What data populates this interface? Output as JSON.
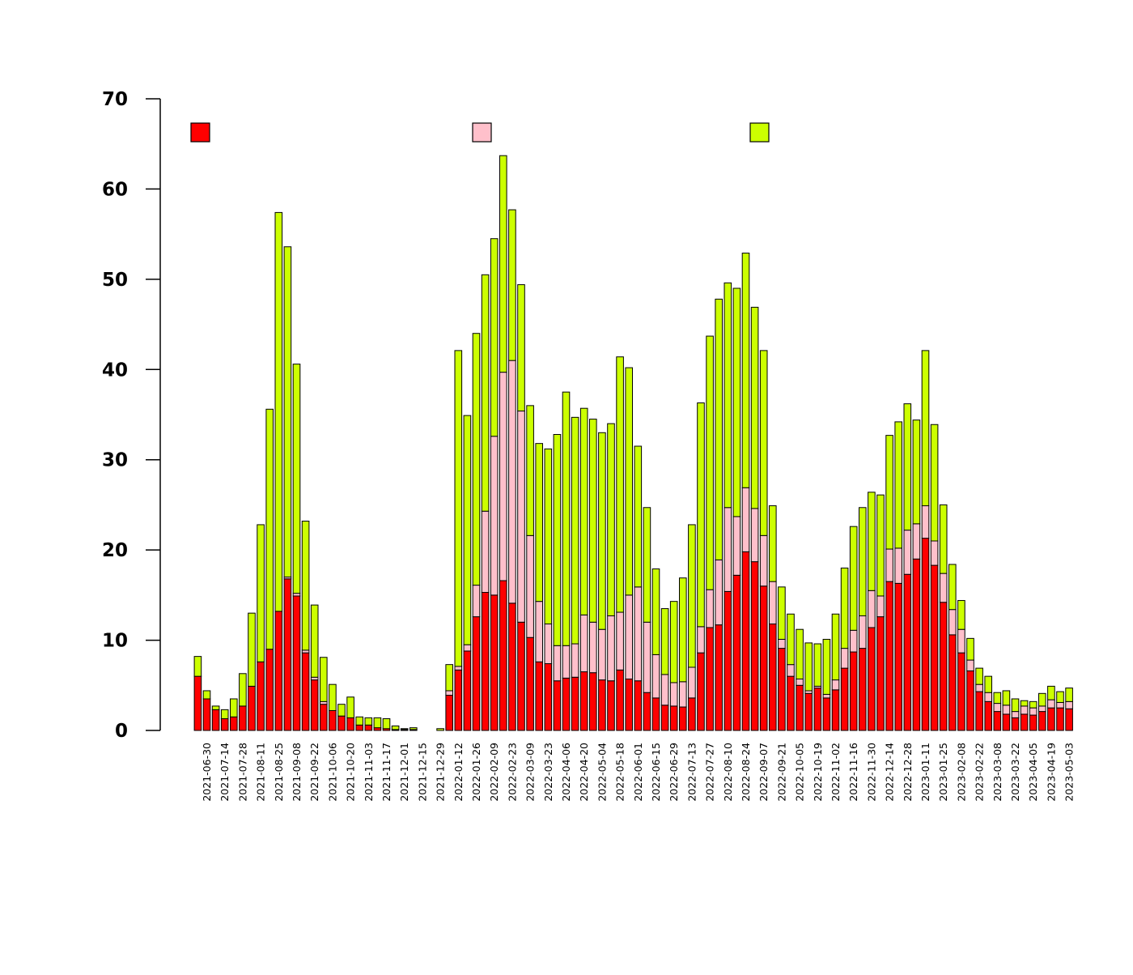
{
  "title": {
    "line1": "",
    "line2": ""
  },
  "ylabel": "",
  "caption": {
    "line1": "",
    "line2": ""
  },
  "colors": {
    "secured_beds": "#ff0000",
    "other_hospital": "#ffc0cb",
    "accommodation": "#ccff00",
    "stroke": "#000000"
  },
  "chart_data": {
    "type": "bar",
    "stacked": true,
    "title": "",
    "xlabel": "",
    "ylabel": "",
    "ylim": [
      0,
      70
    ],
    "yticks": [
      0,
      10,
      20,
      30,
      40,
      50,
      60,
      70
    ],
    "legend_position": "top",
    "grid": false,
    "x": [
      "2021-06-23",
      "2021-06-30",
      "2021-07-07",
      "2021-07-14",
      "2021-07-21",
      "2021-07-28",
      "2021-08-04",
      "2021-08-11",
      "2021-08-18",
      "2021-08-25",
      "2021-09-01",
      "2021-09-08",
      "2021-09-15",
      "2021-09-22",
      "2021-09-29",
      "2021-10-06",
      "2021-10-13",
      "2021-10-20",
      "2021-10-27",
      "2021-11-03",
      "2021-11-10",
      "2021-11-17",
      "2021-11-24",
      "2021-12-01",
      "2021-12-08",
      "2021-12-15",
      "2021-12-22",
      "2021-12-29",
      "2022-01-05",
      "2022-01-12",
      "2022-01-19",
      "2022-01-26",
      "2022-02-02",
      "2022-02-09",
      "2022-02-16",
      "2022-02-23",
      "2022-03-02",
      "2022-03-09",
      "2022-03-16",
      "2022-03-23",
      "2022-03-30",
      "2022-04-06",
      "2022-04-13",
      "2022-04-20",
      "2022-04-27",
      "2022-05-04",
      "2022-05-11",
      "2022-05-18",
      "2022-05-25",
      "2022-06-01",
      "2022-06-08",
      "2022-06-15",
      "2022-06-22",
      "2022-06-29",
      "2022-07-06",
      "2022-07-13",
      "2022-07-20",
      "2022-07-27",
      "2022-08-03",
      "2022-08-10",
      "2022-08-17",
      "2022-08-24",
      "2022-08-31",
      "2022-09-07",
      "2022-09-14",
      "2022-09-21",
      "2022-09-28",
      "2022-10-05",
      "2022-10-12",
      "2022-10-19",
      "2022-10-26",
      "2022-11-02",
      "2022-11-09",
      "2022-11-16",
      "2022-11-23",
      "2022-11-30",
      "2022-12-07",
      "2022-12-14",
      "2022-12-21",
      "2022-12-28",
      "2023-01-04",
      "2023-01-11",
      "2023-01-18",
      "2023-01-25",
      "2023-02-01",
      "2023-02-08",
      "2023-02-15",
      "2023-02-22",
      "2023-03-01",
      "2023-03-08",
      "2023-03-15",
      "2023-03-22",
      "2023-03-29",
      "2023-04-05",
      "2023-04-12",
      "2023-04-19",
      "2023-04-26",
      "2023-05-03"
    ],
    "series": [
      {
        "name": "",
        "color": "#ff0000",
        "values": [
          6.0,
          3.5,
          2.3,
          1.3,
          1.5,
          2.7,
          4.9,
          7.6,
          9.0,
          13.2,
          16.8,
          14.9,
          8.6,
          5.6,
          2.9,
          2.2,
          1.6,
          1.4,
          0.6,
          0.6,
          0.3,
          0.2,
          0.1,
          0.1,
          0.1,
          0.0,
          0.0,
          0.0,
          3.9,
          6.7,
          8.8,
          12.6,
          15.3,
          15.0,
          16.6,
          14.1,
          12.0,
          10.3,
          7.6,
          7.4,
          5.5,
          5.8,
          5.9,
          6.5,
          6.4,
          5.6,
          5.5,
          6.7,
          5.7,
          5.5,
          4.2,
          3.6,
          2.8,
          2.7,
          2.6,
          3.6,
          8.6,
          11.4,
          11.7,
          15.4,
          17.2,
          19.8,
          18.7,
          16.0,
          11.8,
          9.1,
          6.0,
          5.0,
          4.1,
          4.7,
          3.6,
          4.5,
          6.9,
          8.7,
          9.1,
          11.4,
          12.6,
          16.5,
          16.3,
          17.3,
          19.0,
          21.3,
          18.3,
          14.2,
          10.6,
          8.6,
          6.6,
          4.3,
          3.2,
          2.1,
          1.8,
          1.4,
          1.8,
          1.7,
          2.1,
          2.5,
          2.5,
          2.4
        ]
      },
      {
        "name": "",
        "color": "#ffc0cb",
        "values": [
          0.0,
          0.0,
          0.0,
          0.0,
          0.0,
          0.0,
          0.0,
          0.0,
          0.0,
          0.0,
          0.2,
          0.3,
          0.3,
          0.3,
          0.3,
          0.0,
          0.0,
          0.0,
          0.0,
          0.0,
          0.0,
          0.0,
          0.0,
          0.0,
          0.0,
          0.0,
          0.0,
          0.0,
          0.5,
          0.4,
          0.7,
          3.5,
          9.0,
          17.6,
          23.1,
          26.9,
          23.4,
          11.3,
          6.7,
          4.4,
          3.9,
          3.6,
          3.7,
          6.3,
          5.6,
          5.6,
          7.2,
          6.4,
          9.3,
          10.4,
          7.8,
          4.8,
          3.4,
          2.6,
          2.8,
          3.4,
          2.9,
          4.2,
          7.2,
          9.3,
          6.5,
          7.1,
          5.9,
          5.6,
          4.7,
          1.0,
          1.3,
          0.7,
          0.3,
          0.2,
          0.4,
          1.1,
          2.2,
          2.4,
          3.6,
          4.1,
          2.3,
          3.6,
          3.9,
          4.9,
          3.9,
          3.6,
          2.7,
          3.2,
          2.8,
          2.6,
          1.2,
          0.8,
          1.0,
          0.9,
          1.0,
          0.7,
          0.9,
          0.8,
          0.6,
          0.9,
          0.6,
          0.8
        ]
      },
      {
        "name": "",
        "color": "#ccff00",
        "values": [
          2.2,
          0.9,
          0.4,
          1.0,
          2.0,
          3.6,
          8.1,
          15.2,
          26.6,
          44.2,
          36.6,
          25.4,
          14.3,
          8.0,
          4.9,
          2.9,
          1.3,
          2.3,
          0.9,
          0.8,
          1.1,
          1.1,
          0.4,
          0.1,
          0.2,
          0.0,
          0.0,
          0.2,
          2.9,
          35.0,
          25.4,
          27.9,
          26.2,
          21.9,
          24.0,
          16.7,
          14.0,
          14.4,
          17.5,
          19.4,
          23.4,
          28.1,
          25.1,
          22.9,
          22.5,
          21.8,
          21.3,
          28.3,
          25.2,
          15.6,
          12.7,
          9.5,
          7.3,
          9.0,
          11.5,
          15.8,
          24.8,
          28.1,
          28.9,
          24.9,
          25.3,
          26.0,
          22.3,
          20.5,
          8.4,
          5.8,
          5.6,
          5.5,
          5.3,
          4.7,
          6.1,
          7.3,
          8.9,
          11.5,
          12.0,
          10.9,
          11.2,
          12.6,
          14.0,
          14.0,
          11.5,
          17.2,
          12.9,
          7.6,
          5.0,
          3.2,
          2.4,
          1.8,
          1.8,
          1.2,
          1.6,
          1.4,
          0.6,
          0.7,
          1.4,
          1.5,
          1.2,
          1.5
        ]
      }
    ]
  }
}
